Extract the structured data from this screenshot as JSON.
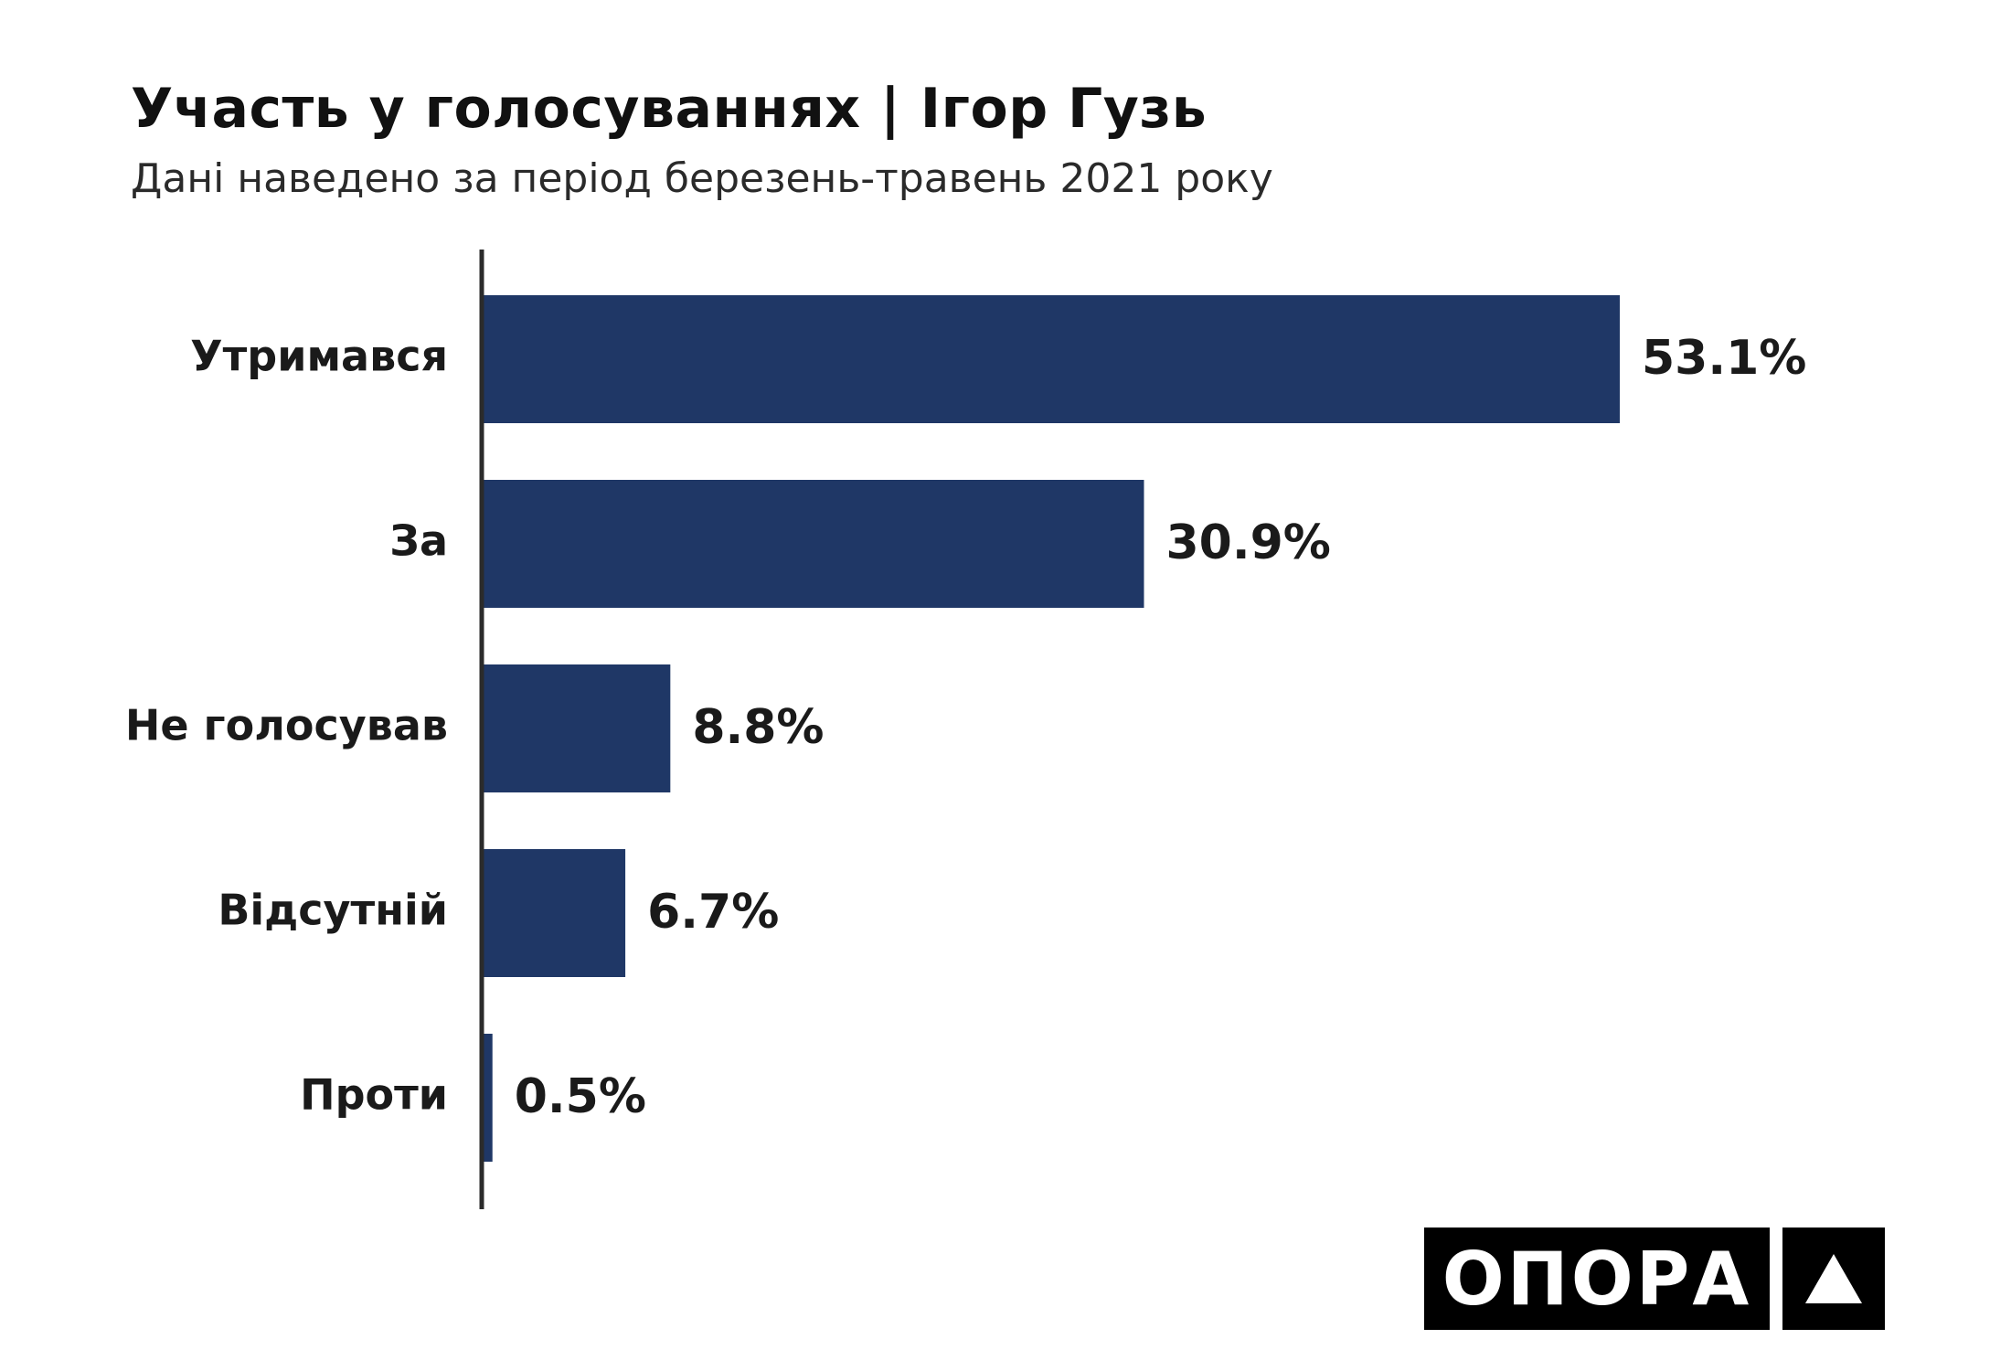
{
  "chart_data": {
    "type": "bar",
    "orientation": "horizontal",
    "title": "Участь у голосуваннях | Ігор Гузь",
    "subtitle": "Дані наведено за період березень-травень 2021 року",
    "categories": [
      "Утримався",
      "За",
      "Не голосував",
      "Відсутній",
      "Проти"
    ],
    "values": [
      53.1,
      30.9,
      8.8,
      6.7,
      0.5
    ],
    "value_labels": [
      "53.1%",
      "30.9%",
      "8.8%",
      "6.7%",
      "0.5%"
    ],
    "xlim": [
      0,
      53.1
    ],
    "grid": false,
    "legend": "none",
    "bar_color": "#1f3766"
  },
  "logo": {
    "text": "ОПОРА",
    "mark_icon": "triangle-up-icon"
  }
}
